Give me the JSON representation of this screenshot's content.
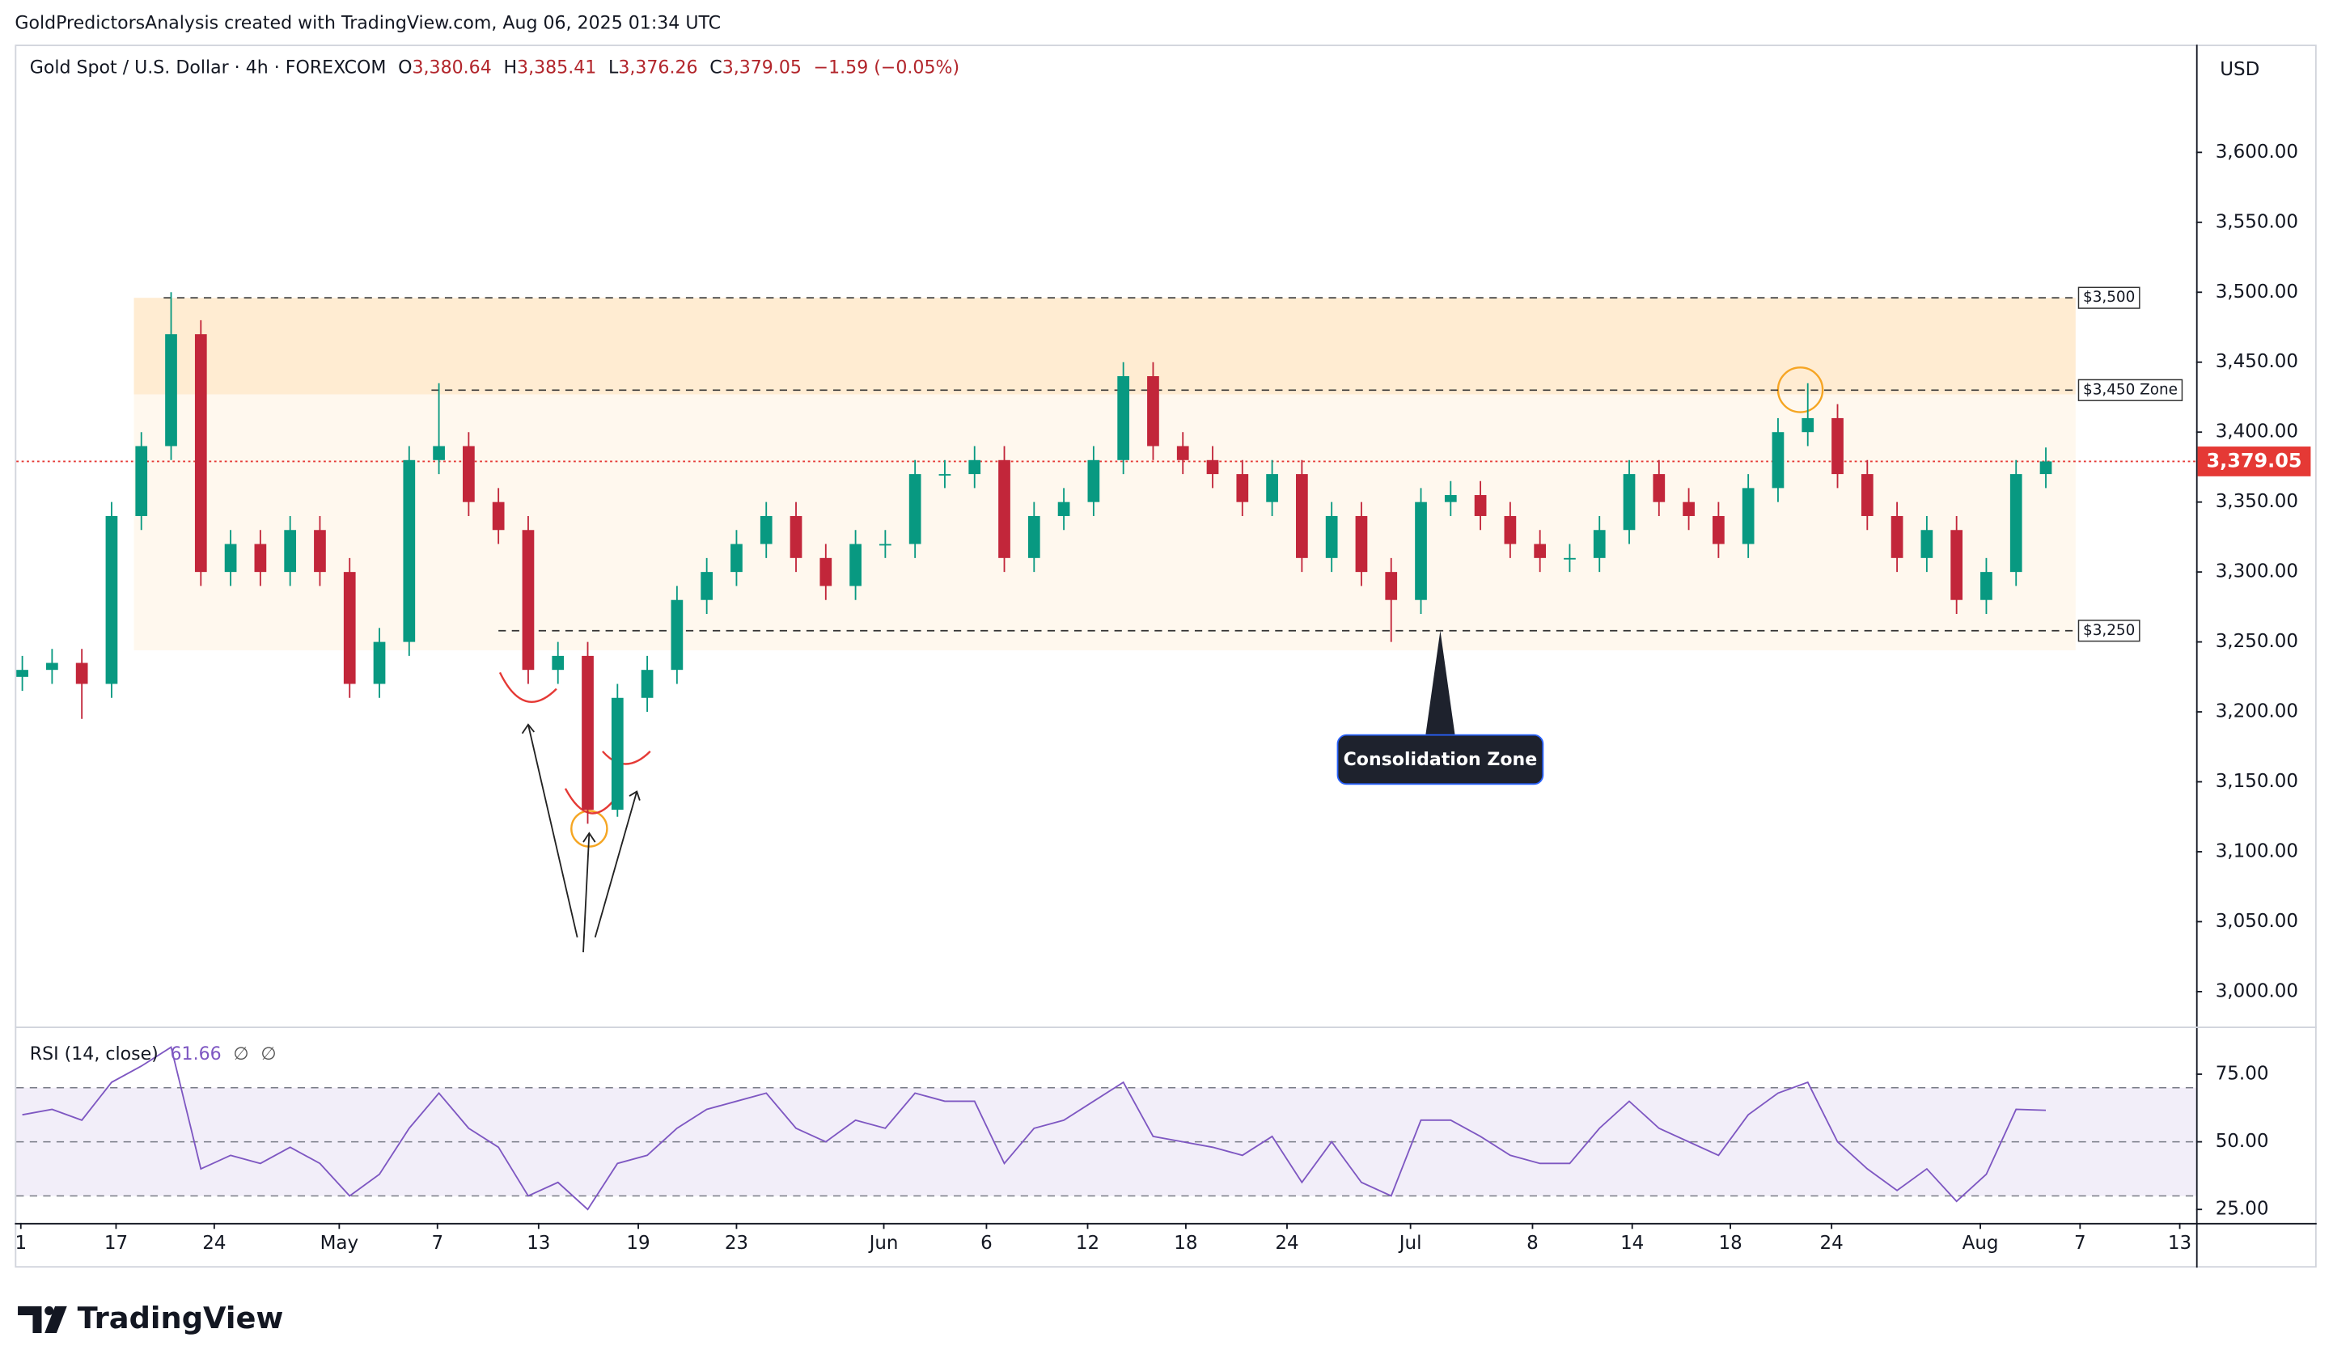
{
  "caption": "GoldPredictorsAnalysis created with TradingView.com, Aug 06, 2025 01:34 UTC",
  "header": {
    "symbol": "Gold Spot / U.S. Dollar · 4h · FOREXCOM",
    "ohlc": [
      {
        "label": "O",
        "value": "3,380.64"
      },
      {
        "label": "H",
        "value": "3,385.41"
      },
      {
        "label": "L",
        "value": "3,376.26"
      },
      {
        "label": "C",
        "value": "3,379.05"
      }
    ],
    "change": "−1.59 (−0.05%)"
  },
  "currency": "USD",
  "brand": "TradingView",
  "chart_data": {
    "type": "candlestick",
    "up_color": "#089981",
    "down_color": "#c2263a",
    "x": [
      0,
      1,
      2,
      3,
      4,
      5,
      6,
      7,
      8,
      9,
      10,
      11,
      12,
      13,
      14,
      15,
      16,
      17,
      18,
      19,
      20,
      21,
      22,
      23,
      24,
      25,
      26,
      27,
      28,
      29,
      30,
      31,
      32,
      33,
      34,
      35,
      36,
      37,
      38,
      39,
      40,
      41,
      42,
      43,
      44,
      45,
      46,
      47,
      48,
      49,
      50,
      51,
      52,
      53,
      54,
      55,
      56,
      57,
      58,
      59,
      60,
      61,
      62,
      63,
      64,
      65,
      66,
      67,
      68
    ],
    "open": [
      3225,
      3230,
      3235,
      3220,
      3340,
      3390,
      3470,
      3300,
      3320,
      3300,
      3330,
      3300,
      3220,
      3250,
      3380,
      3390,
      3350,
      3330,
      3230,
      3240,
      3130,
      3210,
      3230,
      3280,
      3300,
      3320,
      3340,
      3310,
      3290,
      3320,
      3320,
      3370,
      3370,
      3380,
      3310,
      3340,
      3350,
      3380,
      3440,
      3390,
      3380,
      3370,
      3350,
      3370,
      3310,
      3340,
      3300,
      3280,
      3350,
      3355,
      3340,
      3320,
      3310,
      3310,
      3330,
      3370,
      3350,
      3340,
      3320,
      3360,
      3400,
      3410,
      3370,
      3340,
      3310,
      3330,
      3280,
      3300,
      3370
    ],
    "high": [
      3240,
      3245,
      3245,
      3350,
      3400,
      3500,
      3480,
      3330,
      3330,
      3340,
      3340,
      3310,
      3260,
      3390,
      3435,
      3400,
      3360,
      3340,
      3250,
      3250,
      3220,
      3240,
      3290,
      3310,
      3330,
      3350,
      3350,
      3320,
      3330,
      3330,
      3380,
      3380,
      3390,
      3390,
      3350,
      3360,
      3390,
      3450,
      3450,
      3400,
      3390,
      3380,
      3380,
      3380,
      3350,
      3350,
      3310,
      3360,
      3365,
      3365,
      3350,
      3330,
      3320,
      3340,
      3380,
      3380,
      3360,
      3350,
      3370,
      3410,
      3435,
      3420,
      3380,
      3350,
      3340,
      3340,
      3310,
      3380,
      3389
    ],
    "low": [
      3215,
      3220,
      3195,
      3210,
      3330,
      3380,
      3290,
      3290,
      3290,
      3290,
      3290,
      3210,
      3210,
      3240,
      3370,
      3340,
      3320,
      3220,
      3220,
      3120,
      3125,
      3200,
      3220,
      3270,
      3290,
      3310,
      3300,
      3280,
      3280,
      3310,
      3310,
      3360,
      3360,
      3300,
      3300,
      3330,
      3340,
      3370,
      3380,
      3370,
      3360,
      3340,
      3340,
      3300,
      3300,
      3290,
      3250,
      3270,
      3340,
      3330,
      3310,
      3300,
      3300,
      3300,
      3320,
      3340,
      3330,
      3310,
      3310,
      3350,
      3390,
      3360,
      3330,
      3300,
      3300,
      3270,
      3270,
      3290,
      3360
    ],
    "close": [
      3230,
      3235,
      3220,
      3340,
      3390,
      3470,
      3300,
      3320,
      3300,
      3330,
      3300,
      3220,
      3250,
      3380,
      3390,
      3350,
      3330,
      3230,
      3240,
      3130,
      3210,
      3230,
      3280,
      3300,
      3320,
      3340,
      3310,
      3290,
      3320,
      3320,
      3370,
      3370,
      3380,
      3310,
      3340,
      3350,
      3380,
      3440,
      3390,
      3380,
      3370,
      3350,
      3370,
      3310,
      3340,
      3300,
      3280,
      3350,
      3355,
      3340,
      3320,
      3310,
      3310,
      3330,
      3370,
      3350,
      3340,
      3320,
      3360,
      3400,
      3410,
      3370,
      3340,
      3310,
      3330,
      3280,
      3300,
      3370,
      3379.05
    ],
    "xlim": [
      -0.2,
      73.05
    ],
    "xticks": [
      {
        "value": -0.05,
        "label": "1"
      },
      {
        "value": 3.15,
        "label": "17"
      },
      {
        "value": 6.45,
        "label": "24"
      },
      {
        "value": 10.65,
        "label": "May"
      },
      {
        "value": 13.95,
        "label": "7"
      },
      {
        "value": 17.35,
        "label": "13"
      },
      {
        "value": 20.7,
        "label": "19"
      },
      {
        "value": 24,
        "label": "23"
      },
      {
        "value": 28.95,
        "label": "Jun"
      },
      {
        "value": 32.4,
        "label": "6"
      },
      {
        "value": 35.8,
        "label": "12"
      },
      {
        "value": 39.1,
        "label": "18"
      },
      {
        "value": 42.5,
        "label": "24"
      },
      {
        "value": 46.65,
        "label": "Jul"
      },
      {
        "value": 50.75,
        "label": "8"
      },
      {
        "value": 54.1,
        "label": "14"
      },
      {
        "value": 57.4,
        "label": "18"
      },
      {
        "value": 60.8,
        "label": "24"
      },
      {
        "value": 65.8,
        "label": "Aug"
      },
      {
        "value": 69.15,
        "label": "7"
      },
      {
        "value": 72.5,
        "label": "13"
      }
    ],
    "ylim": [
      2975,
      3677
    ],
    "yticks": [
      {
        "value": 3000,
        "label": "3,000.00"
      },
      {
        "value": 3050,
        "label": "3,050.00"
      },
      {
        "value": 3100,
        "label": "3,100.00"
      },
      {
        "value": 3150,
        "label": "3,150.00"
      },
      {
        "value": 3200,
        "label": "3,200.00"
      },
      {
        "value": 3250,
        "label": "3,250.00"
      },
      {
        "value": 3300,
        "label": "3,300.00"
      },
      {
        "value": 3350,
        "label": "3,350.00"
      },
      {
        "value": 3400,
        "label": "3,400.00"
      },
      {
        "value": 3450,
        "label": "3,450.00"
      },
      {
        "value": 3500,
        "label": "3,500.00"
      },
      {
        "value": 3550,
        "label": "3,550.00"
      },
      {
        "value": 3600,
        "label": "3,600.00"
      }
    ],
    "price_line": {
      "value": 3379.05,
      "label": "3,379.05",
      "color": "#e53935"
    },
    "zones": [
      {
        "from": 3244,
        "to": 3496,
        "x": [
          3.75,
          69
        ],
        "color": "rgba(255,160,40,0.08)"
      },
      {
        "from": 3427,
        "to": 3496,
        "x": [
          3.75,
          69
        ],
        "color": "rgba(255,160,40,0.14)"
      }
    ],
    "levels": [
      {
        "value": 3496,
        "label": "$3,500",
        "x": 4.75
      },
      {
        "value": 3430,
        "label": "$3,450 Zone",
        "x": 13.75
      },
      {
        "value": 3258,
        "label": "$3,250",
        "x": 16
      }
    ],
    "annotation": {
      "text": "Consolidation Zone",
      "x": 47.65,
      "value": 3258
    },
    "rsi": {
      "title": "RSI (14, close)",
      "value_label": "61.66",
      "flags": [
        "∅",
        "∅"
      ],
      "color": "#7e57c2",
      "values": [
        60,
        62,
        58,
        72,
        78,
        85,
        40,
        45,
        42,
        48,
        42,
        30,
        38,
        55,
        68,
        55,
        48,
        30,
        35,
        25,
        42,
        45,
        55,
        62,
        65,
        68,
        55,
        50,
        58,
        55,
        68,
        65,
        65,
        42,
        55,
        58,
        65,
        72,
        52,
        50,
        48,
        45,
        52,
        35,
        50,
        35,
        30,
        58,
        58,
        52,
        45,
        42,
        42,
        55,
        65,
        55,
        50,
        45,
        60,
        68,
        72,
        50,
        40,
        32,
        40,
        28,
        38,
        62,
        61.66
      ],
      "ylim": [
        20,
        91.5
      ],
      "yticks": [
        {
          "value": 25,
          "label": "25.00"
        },
        {
          "value": 50,
          "label": "50.00"
        },
        {
          "value": 75,
          "label": "75.00"
        }
      ],
      "levels": [
        70,
        50,
        30
      ]
    }
  }
}
